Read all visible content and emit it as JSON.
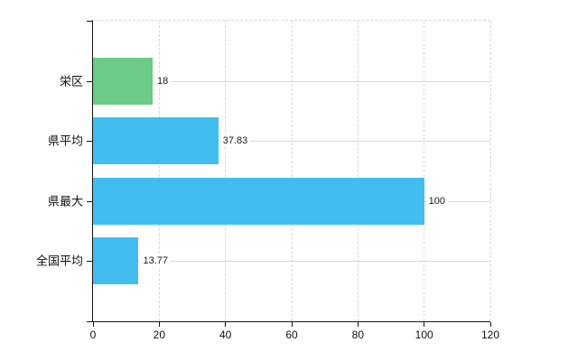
{
  "chart_data": {
    "type": "bar",
    "orientation": "horizontal",
    "title": "",
    "categories": [
      "栄区",
      "県平均",
      "県最大",
      "全国平均"
    ],
    "values": [
      18,
      37.83,
      100,
      13.77
    ],
    "value_labels": [
      "18",
      "37.83",
      "100",
      "13.77"
    ],
    "bar_colors": [
      "#6bca86",
      "#41bdf0",
      "#41bdf0",
      "#41bdf0"
    ],
    "xlabel": "",
    "ylabel": "",
    "xlim": [
      0,
      120
    ],
    "x_ticks": [
      "0",
      "20",
      "40",
      "60",
      "80",
      "100",
      "120"
    ],
    "x_tick_values": [
      0,
      20,
      40,
      60,
      80,
      100,
      120
    ],
    "legend": "none",
    "grid": {
      "vertical_style": "dashed",
      "horizontal_style": "solid",
      "color": "#d9d9d9"
    },
    "axis_color": "#141414"
  }
}
